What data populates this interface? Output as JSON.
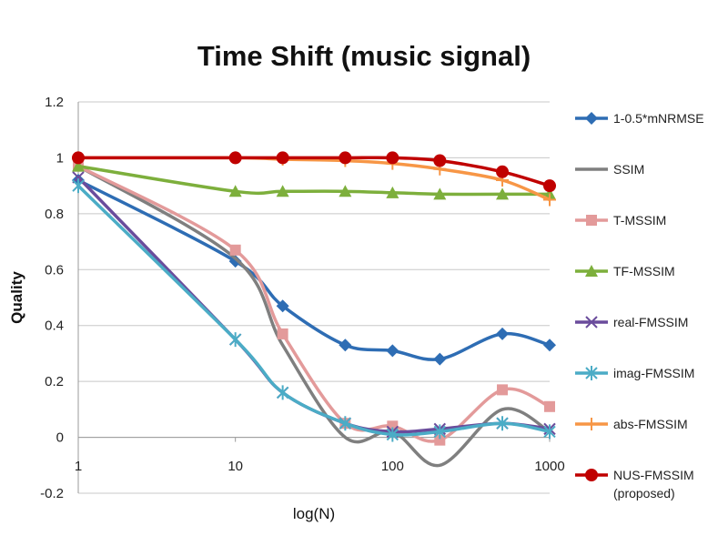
{
  "chart_data": {
    "type": "line",
    "title": "Time Shift (music signal)",
    "xlabel": "log(N)",
    "ylabel": "Quality",
    "x_scale": "log",
    "xlim": [
      1,
      1000
    ],
    "ylim": [
      -0.2,
      1.2
    ],
    "x_ticks": [
      "1",
      "10",
      "100",
      "1000"
    ],
    "y_ticks": [
      "-0.2",
      "0",
      "0.2",
      "0.4",
      "0.6",
      "0.8",
      "1",
      "1.2"
    ],
    "grid": "horizontal",
    "legend_position": "right",
    "x": [
      1,
      10,
      20,
      50,
      100,
      200,
      500,
      1000
    ],
    "series": [
      {
        "name": "1-0.5*mNRMSE",
        "color": "#2E6DB4",
        "marker": "diamond",
        "values": [
          0.92,
          0.63,
          0.47,
          0.33,
          0.31,
          0.28,
          0.37,
          0.33
        ]
      },
      {
        "name": "SSIM",
        "color": "#7F7F7F",
        "marker": "none",
        "values": [
          0.97,
          0.64,
          0.33,
          0.0,
          0.02,
          -0.1,
          0.1,
          0.02
        ]
      },
      {
        "name": "T-MSSIM",
        "color": "#E39A9A",
        "marker": "square",
        "values": [
          0.97,
          0.67,
          0.37,
          0.05,
          0.04,
          -0.01,
          0.17,
          0.11
        ]
      },
      {
        "name": "TF-MSSIM",
        "color": "#7DAF3C",
        "marker": "triangle",
        "values": [
          0.97,
          0.88,
          0.88,
          0.88,
          0.875,
          0.87,
          0.87,
          0.87
        ]
      },
      {
        "name": "real-FMSSIM",
        "color": "#6A4C9C",
        "marker": "x",
        "values": [
          0.93,
          0.35,
          0.16,
          0.05,
          0.02,
          0.03,
          0.05,
          0.03
        ]
      },
      {
        "name": "imag-FMSSIM",
        "color": "#4BACC6",
        "marker": "star",
        "values": [
          0.9,
          0.35,
          0.16,
          0.05,
          0.01,
          0.02,
          0.05,
          0.02
        ]
      },
      {
        "name": "abs-FMSSIM",
        "color": "#F79646",
        "marker": "plus",
        "values": [
          1.0,
          1.0,
          0.995,
          0.99,
          0.98,
          0.96,
          0.92,
          0.85
        ]
      },
      {
        "name": "NUS-FMSSIM (proposed)",
        "color": "#C00000",
        "marker": "circle",
        "values": [
          1.0,
          1.0,
          1.0,
          1.0,
          1.0,
          0.99,
          0.95,
          0.9
        ]
      }
    ],
    "legend": [
      {
        "line1": "1-0.5*mNRMSE",
        "line2": ""
      },
      {
        "line1": "SSIM",
        "line2": ""
      },
      {
        "line1": "T-MSSIM",
        "line2": ""
      },
      {
        "line1": "TF-MSSIM",
        "line2": ""
      },
      {
        "line1": "real-FMSSIM",
        "line2": ""
      },
      {
        "line1": "imag-FMSSIM",
        "line2": ""
      },
      {
        "line1": "abs-FMSSIM",
        "line2": ""
      },
      {
        "line1": "NUS-FMSSIM",
        "line2": "(proposed)"
      }
    ]
  }
}
